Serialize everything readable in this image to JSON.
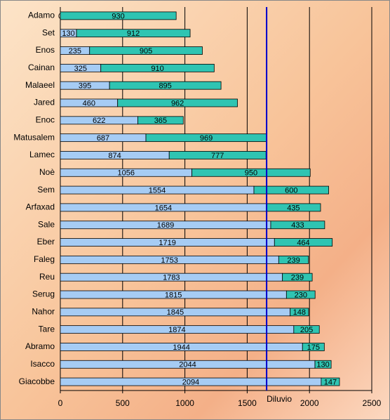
{
  "chart_data": {
    "type": "bar",
    "orientation": "horizontal",
    "categories": [
      "Adamo",
      "Set",
      "Enos",
      "Cainan",
      "Malaeel",
      "Jared",
      "Enoc",
      "Matusalem",
      "Lamec",
      "Noè",
      "Sem",
      "Arfaxad",
      "Sale",
      "Eber",
      "Faleg",
      "Reu",
      "Serug",
      "Nahor",
      "Tare",
      "Abramo",
      "Isacco",
      "Giacobbe"
    ],
    "series": [
      {
        "color": "#a6ccf4",
        "values": [
          0,
          130,
          235,
          325,
          395,
          460,
          622,
          687,
          874,
          1056,
          1554,
          1654,
          1689,
          1719,
          1753,
          1783,
          1815,
          1845,
          1874,
          1944,
          2044,
          2094
        ]
      },
      {
        "color": "#2fc4b2",
        "values": [
          930,
          912,
          905,
          910,
          895,
          962,
          365,
          969,
          777,
          950,
          600,
          435,
          433,
          464,
          239,
          239,
          230,
          148,
          205,
          175,
          130,
          147
        ]
      }
    ],
    "xlim": [
      0,
      2500
    ],
    "xticks": [
      0,
      500,
      1000,
      1500,
      2000,
      2500
    ],
    "grid": true,
    "annotations": [
      {
        "text": "Diluvio",
        "x": 1656,
        "color": "#0000cc"
      }
    ]
  }
}
